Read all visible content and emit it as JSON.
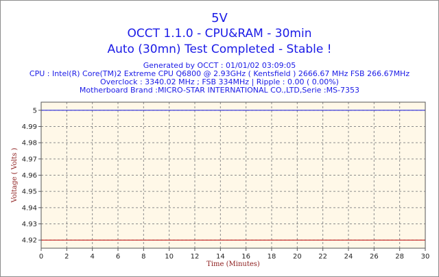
{
  "chart_data": {
    "type": "line",
    "title": "5V",
    "subtitle_lines": [
      "OCCT 1.1.0 - CPU&RAM - 30min",
      "Auto (30mn) Test Completed - Stable !"
    ],
    "info_lines": [
      "Generated by OCCT : 01/01/02 03:09:05",
      "CPU : Intel(R) Core(TM)2 Extreme CPU Q6800  @ 2.93GHz ( Kentsfield ) 2666.67 MHz FSB 266.67MHz",
      "Overclock : 3340.02 MHz ; FSB 334MHz | Ripple : 0.00 ( 0.00%)",
      "Motherboard Brand :MICRO-STAR INTERNATIONAL CO.,LTD,Serie :MS-7353"
    ],
    "xlabel": "Time (Minutes)",
    "ylabel": "Voltage ( Volts )",
    "xlim": [
      0,
      30
    ],
    "ylim": [
      4.915,
      5.005
    ],
    "xticks": [
      0,
      2,
      4,
      6,
      8,
      10,
      12,
      14,
      16,
      18,
      20,
      22,
      24,
      26,
      28,
      30
    ],
    "yticks": [
      4.92,
      4.93,
      4.94,
      4.95,
      4.96,
      4.97,
      4.98,
      4.99,
      5
    ],
    "ytick_labels": [
      "4.92",
      "4.93",
      "4.94",
      "4.95",
      "4.96",
      "4.97",
      "4.98",
      "4.99",
      "5"
    ],
    "grid": true,
    "series": [
      {
        "x": [
          0,
          30
        ],
        "values": [
          5.0,
          5.0
        ],
        "color": "#2b2bdc"
      },
      {
        "x": [
          0,
          30
        ],
        "values": [
          4.92,
          4.92
        ],
        "color": "#c21a1a"
      }
    ],
    "colors": {
      "text": "#1a1ae6",
      "axis_label": "#8b1a1a",
      "plot_bg": "#fff8e8",
      "grid": "#8a8a8a"
    }
  }
}
